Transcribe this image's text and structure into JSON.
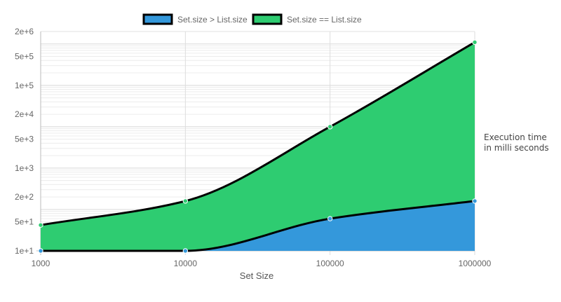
{
  "chart_data": {
    "type": "area",
    "x": [
      1000,
      10000,
      100000,
      1000000
    ],
    "x_tick_labels": [
      "1000",
      "10000",
      "100000",
      "1000000"
    ],
    "xlabel": "Set Size",
    "y_scale": "log",
    "y_tick_labels": [
      "2e+6",
      "5e+5",
      "1e+5",
      "2e+4",
      "5e+3",
      "1e+3",
      "2e+2",
      "5e+1",
      "1e+1"
    ],
    "y_tick_values": [
      2000000,
      500000,
      100000,
      20000,
      5000,
      1000,
      200,
      50,
      10
    ],
    "ylim": [
      10,
      2000000
    ],
    "ylabel_lines": [
      "Execution time",
      "in milli seconds"
    ],
    "grid": true,
    "legend_position": "top-center",
    "series": [
      {
        "name": "Set.size > List.size",
        "values": [
          10,
          10,
          60,
          160
        ],
        "color": "#3498db"
      },
      {
        "name": "Set.size == List.size",
        "values": [
          42,
          160,
          10000,
          1100000
        ],
        "color": "#2ecc71"
      }
    ]
  }
}
